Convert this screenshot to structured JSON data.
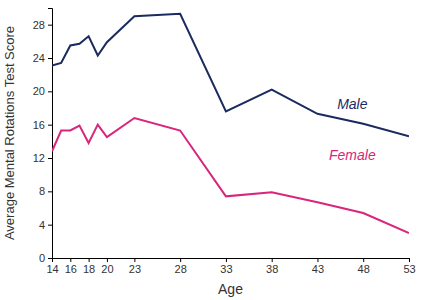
{
  "chart_data": {
    "type": "line",
    "x_label": "Age",
    "y_label": "Average Mental Rotations Test Score",
    "x": [
      14,
      15,
      16,
      17,
      18,
      19,
      20,
      23,
      28,
      33,
      38,
      43,
      48,
      53
    ],
    "series": [
      {
        "name": "Male",
        "color": "#1b2a5f",
        "values": [
          23.1,
          23.4,
          25.5,
          25.7,
          26.6,
          24.3,
          25.9,
          29.0,
          29.3,
          17.6,
          20.2,
          17.3,
          16.1,
          14.6
        ]
      },
      {
        "name": "Female",
        "color": "#d7267b",
        "values": [
          12.8,
          15.3,
          15.3,
          15.9,
          13.8,
          16.0,
          14.5,
          16.8,
          15.3,
          7.4,
          7.9,
          6.7,
          5.4,
          3.0
        ]
      }
    ],
    "xlim": [
      14,
      53
    ],
    "ylim": [
      0,
      30
    ],
    "xticks": [
      14,
      16,
      18,
      20,
      23,
      28,
      33,
      38,
      43,
      48,
      53
    ],
    "yticks": [
      0,
      4,
      8,
      12,
      16,
      20,
      24,
      28
    ],
    "grid": false
  }
}
